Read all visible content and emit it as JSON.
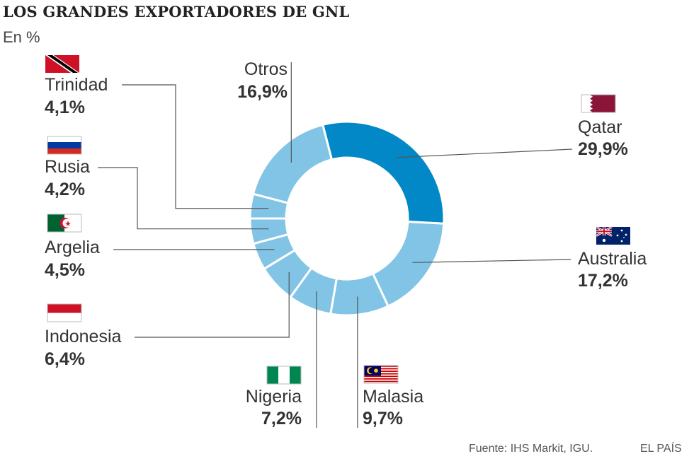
{
  "title": "LOS GRANDES EXPORTADORES DE GNL",
  "subtitle": "En %",
  "source": "Fuente: IHS Markit, IGU.",
  "brand": "EL PAÍS",
  "colors": {
    "highlight": "#0288c6",
    "base": "#82c4e6",
    "separator": "#ffffff",
    "leader": "#555555"
  },
  "chart_data": {
    "type": "pie",
    "variant": "donut",
    "unit": "%",
    "slices": [
      {
        "name": "Qatar",
        "value": 29.9,
        "label": "29,9%",
        "flag": "qatar-flag"
      },
      {
        "name": "Australia",
        "value": 17.2,
        "label": "17,2%",
        "flag": "australia-flag"
      },
      {
        "name": "Malasia",
        "value": 9.7,
        "label": "9,7%",
        "flag": "malaysia-flag"
      },
      {
        "name": "Nigeria",
        "value": 7.2,
        "label": "7,2%",
        "flag": "nigeria-flag"
      },
      {
        "name": "Indonesia",
        "value": 6.4,
        "label": "6,4%",
        "flag": "indonesia-flag"
      },
      {
        "name": "Argelia",
        "value": 4.5,
        "label": "4,5%",
        "flag": "algeria-flag"
      },
      {
        "name": "Rusia",
        "value": 4.2,
        "label": "4,2%",
        "flag": "russia-flag"
      },
      {
        "name": "Trinidad",
        "value": 4.1,
        "label": "4,1%",
        "flag": "trinidad-flag"
      },
      {
        "name": "Otros",
        "value": 16.9,
        "label": "16,9%",
        "flag": ""
      }
    ]
  }
}
